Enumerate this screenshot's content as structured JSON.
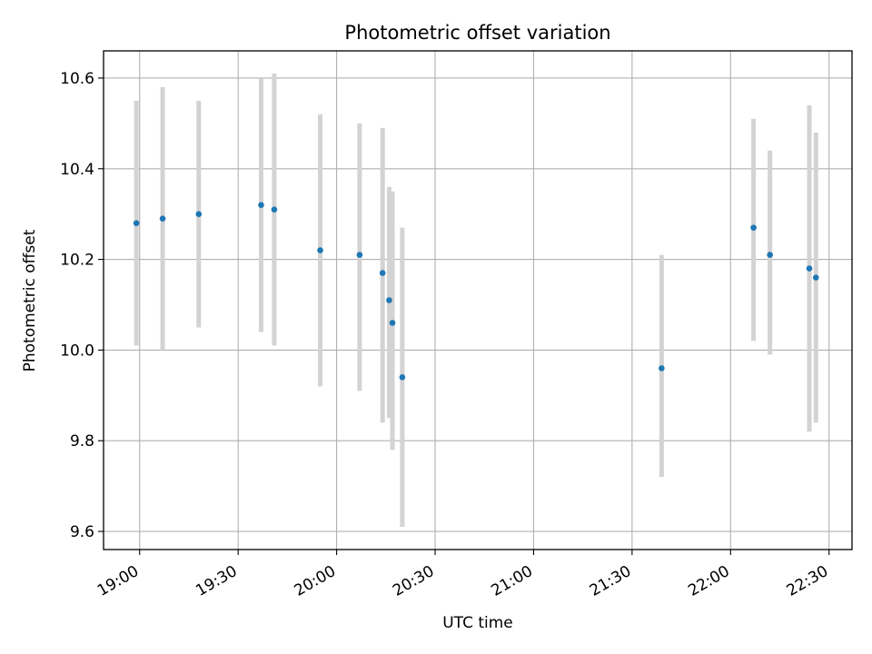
{
  "chart_data": {
    "type": "scatter",
    "title": "Photometric offset variation",
    "xlabel": "UTC time",
    "ylabel": "Photometric offset",
    "xlim": [
      "18:49",
      "22:37"
    ],
    "ylim": [
      9.56,
      10.66
    ],
    "x_ticks": [
      "19:00",
      "19:30",
      "20:00",
      "20:30",
      "21:00",
      "21:30",
      "22:00",
      "22:30"
    ],
    "y_ticks": [
      9.6,
      9.8,
      10.0,
      10.2,
      10.4,
      10.6
    ],
    "y_tick_labels": [
      "9.6",
      "9.8",
      "10.0",
      "10.2",
      "10.4",
      "10.6"
    ],
    "grid": true,
    "marker_color": "#1f77b4",
    "errorbar_color": "#d3d3d3",
    "points": [
      {
        "time": "18:59",
        "y": 10.28,
        "ymin": 10.01,
        "ymax": 10.55
      },
      {
        "time": "19:07",
        "y": 10.29,
        "ymin": 10.0,
        "ymax": 10.58
      },
      {
        "time": "19:18",
        "y": 10.3,
        "ymin": 10.05,
        "ymax": 10.55
      },
      {
        "time": "19:37",
        "y": 10.32,
        "ymin": 10.04,
        "ymax": 10.6
      },
      {
        "time": "19:41",
        "y": 10.31,
        "ymin": 10.01,
        "ymax": 10.61
      },
      {
        "time": "19:55",
        "y": 10.22,
        "ymin": 9.92,
        "ymax": 10.52
      },
      {
        "time": "20:07",
        "y": 10.21,
        "ymin": 9.91,
        "ymax": 10.5
      },
      {
        "time": "20:14",
        "y": 10.17,
        "ymin": 9.84,
        "ymax": 10.49
      },
      {
        "time": "20:16",
        "y": 10.11,
        "ymin": 9.85,
        "ymax": 10.36
      },
      {
        "time": "20:17",
        "y": 10.06,
        "ymin": 9.78,
        "ymax": 10.35
      },
      {
        "time": "20:20",
        "y": 9.94,
        "ymin": 9.61,
        "ymax": 10.27
      },
      {
        "time": "21:39",
        "y": 9.96,
        "ymin": 9.72,
        "ymax": 10.21
      },
      {
        "time": "22:07",
        "y": 10.27,
        "ymin": 10.02,
        "ymax": 10.51
      },
      {
        "time": "22:12",
        "y": 10.21,
        "ymin": 9.99,
        "ymax": 10.44
      },
      {
        "time": "22:24",
        "y": 10.18,
        "ymin": 9.82,
        "ymax": 10.54
      },
      {
        "time": "22:26",
        "y": 10.16,
        "ymin": 9.84,
        "ymax": 10.48
      }
    ]
  }
}
